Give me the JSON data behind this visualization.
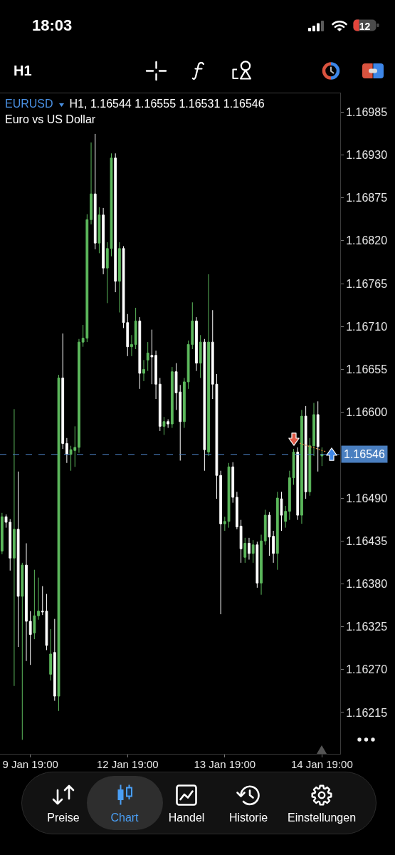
{
  "chart_data": {
    "type": "candlestick",
    "title": "EURUSD",
    "subtitle": "Euro vs US Dollar",
    "annotations": [
      "18:03",
      "12",
      "H1",
      "H1, 1.16544 1.16555 1.16531 1.16546",
      "Preise",
      "Chart",
      "Handel",
      "Historie",
      "Einstellungen"
    ],
    "categories": [
      null,
      null,
      null,
      null,
      null,
      null,
      null,
      "9 Jan 19:00",
      null,
      null,
      null,
      null,
      null,
      null,
      null,
      null,
      null,
      null,
      null,
      null,
      null,
      null,
      null,
      null,
      null,
      null,
      null,
      null,
      null,
      null,
      null,
      "12 Jan 19:00",
      null,
      null,
      null,
      null,
      null,
      null,
      null,
      null,
      null,
      null,
      null,
      null,
      null,
      null,
      null,
      null,
      null,
      null,
      null,
      null,
      null,
      null,
      null,
      "13 Jan 19:00",
      null,
      null,
      null,
      null,
      null,
      null,
      null,
      null,
      null,
      null,
      null,
      null,
      null,
      null,
      null,
      null,
      null,
      null,
      null,
      null,
      null,
      null,
      null,
      "14 Jan 19:00",
      null,
      null,
      null,
      null
    ],
    "ohlc": [
      [
        1.16422,
        1.16471,
        1.16418,
        1.16466
      ],
      [
        1.16466,
        1.16469,
        1.16452,
        1.16459
      ],
      [
        1.16459,
        1.16463,
        1.16397,
        1.16413
      ],
      [
        1.16413,
        1.16604,
        1.16249,
        1.1645
      ],
      [
        1.1645,
        1.16524,
        1.16299,
        1.16364
      ],
      [
        1.16364,
        1.16407,
        1.1618,
        1.16404
      ],
      [
        1.16404,
        1.16432,
        1.16281,
        1.16332
      ],
      [
        1.16332,
        1.16345,
        1.16276,
        1.16315
      ],
      [
        1.16317,
        1.16398,
        1.16309,
        1.16339
      ],
      [
        1.16339,
        1.16388,
        1.16334,
        1.16345
      ],
      [
        1.16345,
        1.16377,
        1.1634,
        1.16344
      ],
      [
        1.16345,
        1.16367,
        1.16295,
        1.16301
      ],
      [
        1.16264,
        1.16322,
        1.16256,
        1.1629
      ],
      [
        1.16292,
        1.16335,
        1.1623,
        1.16236
      ],
      [
        1.16236,
        1.16648,
        1.16217,
        1.16644
      ],
      [
        1.16644,
        1.16701,
        1.16553,
        1.1656
      ],
      [
        1.1656,
        1.16567,
        1.16535,
        1.16546
      ],
      [
        1.16546,
        1.16557,
        1.16525,
        1.16552
      ],
      [
        1.16551,
        1.16582,
        1.1653,
        1.16555
      ],
      [
        1.16555,
        1.16694,
        1.16548,
        1.1669
      ],
      [
        1.1669,
        1.16712,
        1.16684,
        1.16695
      ],
      [
        1.16695,
        1.16854,
        1.1669,
        1.16847
      ],
      [
        1.16847,
        1.16946,
        1.16841,
        1.1688
      ],
      [
        1.1688,
        1.16957,
        1.16809,
        1.16817
      ],
      [
        1.16817,
        1.16863,
        1.16804,
        1.16853
      ],
      [
        1.16853,
        1.16862,
        1.16777,
        1.16785
      ],
      [
        1.16785,
        1.16818,
        1.1674,
        1.1681
      ],
      [
        1.1681,
        1.16932,
        1.168,
        1.16926
      ],
      [
        1.16926,
        1.16932,
        1.16754,
        1.16768
      ],
      [
        1.16768,
        1.16818,
        1.16728,
        1.1681
      ],
      [
        1.1681,
        1.16813,
        1.16708,
        1.16715
      ],
      [
        1.16715,
        1.16726,
        1.16672,
        1.16684
      ],
      [
        1.16684,
        1.16699,
        1.16672,
        1.16687
      ],
      [
        1.16687,
        1.16734,
        1.16681,
        1.16717
      ],
      [
        1.16717,
        1.16722,
        1.1663,
        1.1665
      ],
      [
        1.1665,
        1.16667,
        1.1664,
        1.16655
      ],
      [
        1.16667,
        1.1669,
        1.16653,
        1.16676
      ],
      [
        1.16673,
        1.16706,
        1.16636,
        1.16671
      ],
      [
        1.16673,
        1.16679,
        1.16617,
        1.16636
      ],
      [
        1.16636,
        1.16644,
        1.16576,
        1.16582
      ],
      [
        1.16582,
        1.16594,
        1.16571,
        1.16588
      ],
      [
        1.16588,
        1.16591,
        1.1658,
        1.16585
      ],
      [
        1.16585,
        1.16658,
        1.1658,
        1.16652
      ],
      [
        1.16652,
        1.16663,
        1.16603,
        1.16625
      ],
      [
        1.16626,
        1.16635,
        1.16538,
        1.16588
      ],
      [
        1.16588,
        1.16644,
        1.1658,
        1.16639
      ],
      [
        1.16639,
        1.16692,
        1.1663,
        1.16687
      ],
      [
        1.16687,
        1.16741,
        1.16681,
        1.16717
      ],
      [
        1.16717,
        1.16722,
        1.16653,
        1.16663
      ],
      [
        1.16663,
        1.16699,
        1.16644,
        1.1669
      ],
      [
        1.1669,
        1.16694,
        1.16525,
        1.16552
      ],
      [
        1.16549,
        1.16777,
        1.16544,
        1.1669
      ],
      [
        1.1669,
        1.16731,
        1.16617,
        1.16636
      ],
      [
        1.16636,
        1.16649,
        1.16489,
        1.16519
      ],
      [
        1.16519,
        1.16525,
        1.16341,
        1.16457
      ],
      [
        1.16457,
        1.16466,
        1.16448,
        1.1646
      ],
      [
        1.1646,
        1.16535,
        1.16452,
        1.1653
      ],
      [
        1.1653,
        1.16536,
        1.16484,
        1.16491
      ],
      [
        1.16491,
        1.16498,
        1.1645,
        1.16453
      ],
      [
        1.16454,
        1.16462,
        1.16407,
        1.16425
      ],
      [
        1.16414,
        1.16439,
        1.16407,
        1.16432
      ],
      [
        1.16432,
        1.16439,
        1.16411,
        1.16419
      ],
      [
        1.16419,
        1.16436,
        1.16407,
        1.1643
      ],
      [
        1.1643,
        1.16434,
        1.16375,
        1.16381
      ],
      [
        1.16381,
        1.16443,
        1.16366,
        1.16435
      ],
      [
        1.16435,
        1.16475,
        1.1643,
        1.16468
      ],
      [
        1.16468,
        1.16472,
        1.16416,
        1.1644
      ],
      [
        1.16441,
        1.16448,
        1.16407,
        1.16419
      ],
      [
        1.16419,
        1.16498,
        1.16398,
        1.1649
      ],
      [
        1.16489,
        1.16498,
        1.16448,
        1.16468
      ],
      [
        1.1646,
        1.1648,
        1.16452,
        1.16473
      ],
      [
        1.16473,
        1.16525,
        1.16462,
        1.16516
      ],
      [
        1.16516,
        1.16553,
        1.16507,
        1.16549
      ],
      [
        1.16549,
        1.16555,
        1.16462,
        1.16468
      ],
      [
        1.16468,
        1.16603,
        1.16457,
        1.16595
      ],
      [
        1.16595,
        1.16608,
        1.16489,
        1.16498
      ],
      [
        1.16498,
        1.16567,
        1.16493,
        1.16557
      ],
      [
        1.16557,
        1.16612,
        1.16544,
        1.16597
      ],
      [
        1.16597,
        1.16614,
        1.16524,
        1.16556
      ],
      [
        1.16544,
        1.16555,
        1.16531,
        1.16546
      ],
      null,
      null,
      null,
      null
    ],
    "colors": [
      "#5cb85c",
      "#ffffff",
      "#ffffff",
      "#5cb85c",
      "#ffffff",
      "#5cb85c",
      "#ffffff",
      "#ffffff",
      "#5cb85c",
      "#5cb85c",
      "#ffffff",
      "#ffffff",
      "#5cb85c",
      "#ffffff",
      "#5cb85c",
      "#ffffff",
      "#ffffff",
      "#5cb85c",
      "#5cb85c",
      "#5cb85c",
      "#5cb85c",
      "#5cb85c",
      "#5cb85c",
      "#ffffff",
      "#5cb85c",
      "#ffffff",
      "#5cb85c",
      "#5cb85c",
      "#ffffff",
      "#5cb85c",
      "#ffffff",
      "#ffffff",
      "#5cb85c",
      "#5cb85c",
      "#ffffff",
      "#5cb85c",
      "#5cb85c",
      "#ffffff",
      "#ffffff",
      "#ffffff",
      "#5cb85c",
      "#ffffff",
      "#5cb85c",
      "#ffffff",
      "#ffffff",
      "#5cb85c",
      "#5cb85c",
      "#5cb85c",
      "#ffffff",
      "#5cb85c",
      "#ffffff",
      "#5cb85c",
      "#ffffff",
      "#ffffff",
      "#ffffff",
      "#5cb85c",
      "#5cb85c",
      "#ffffff",
      "#ffffff",
      "#ffffff",
      "#5cb85c",
      "#ffffff",
      "#5cb85c",
      "#ffffff",
      "#5cb85c",
      "#5cb85c",
      "#ffffff",
      "#ffffff",
      "#5cb85c",
      "#ffffff",
      "#5cb85c",
      "#5cb85c",
      "#5cb85c",
      "#ffffff",
      "#5cb85c",
      "#ffffff",
      "#5cb85c",
      "#5cb85c",
      "#ffffff",
      "#5cb85c",
      null,
      null,
      null,
      null
    ],
    "ylim": [
      1.16162,
      1.17009
    ],
    "yticks": [
      1.16985,
      {
        "value": 1.1693,
        "label": "1.16930"
      },
      1.16875,
      {
        "value": 1.1682,
        "label": "1.16820"
      },
      1.16765,
      {
        "value": 1.1671,
        "label": "1.16710"
      },
      1.16655,
      {
        "value": 1.166,
        "label": "1.16600"
      },
      {
        "value": 1.1649,
        "label": "1.16490"
      },
      1.16435,
      {
        "value": 1.1638,
        "label": "1.16380"
      },
      1.16325,
      {
        "value": 1.1627,
        "label": "1.16270"
      },
      1.16215
    ],
    "ref_lines": [
      {
        "axis": "y",
        "value": 1.16546,
        "label": "1.16546",
        "color": "#4a7fc0",
        "line_style": "dashed"
      }
    ]
  }
}
